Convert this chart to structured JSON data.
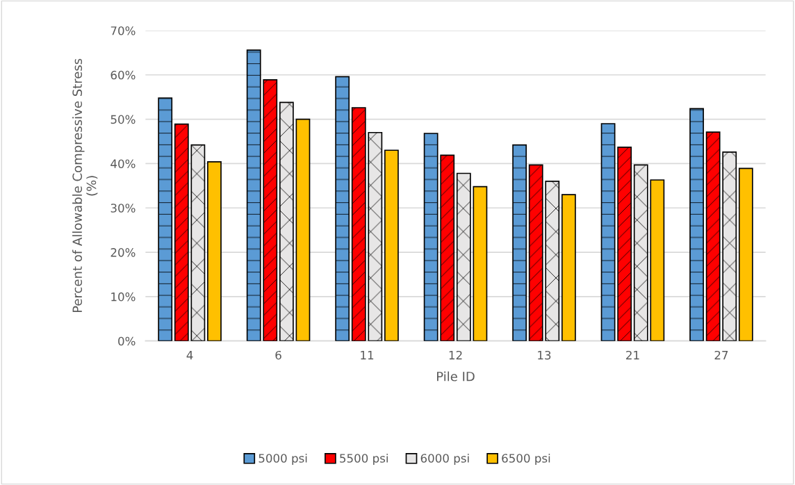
{
  "chart_data": {
    "type": "bar",
    "xlabel": "Pile ID",
    "ylabel": "Percent of Allowable Compressive Stress\n(%)",
    "categories": [
      "4",
      "6",
      "11",
      "12",
      "13",
      "21",
      "27"
    ],
    "series": [
      {
        "name": "5000 psi",
        "color": "#5b9bd5",
        "values": [
          54.8,
          65.6,
          59.6,
          46.8,
          44.2,
          49.0,
          52.4
        ]
      },
      {
        "name": "5500 psi",
        "color": "#ff0000",
        "values": [
          48.9,
          58.9,
          52.6,
          41.9,
          39.7,
          43.7,
          47.1
        ]
      },
      {
        "name": "6000 psi",
        "color": "#e7e6e6",
        "values": [
          44.2,
          53.8,
          47.0,
          37.8,
          36.0,
          39.7,
          42.6
        ]
      },
      {
        "name": "6500 psi",
        "color": "#ffc000",
        "values": [
          40.4,
          50.0,
          43.0,
          34.8,
          33.0,
          36.3,
          38.9
        ]
      }
    ],
    "ylim": [
      0,
      70
    ],
    "yticks": [
      {
        "value": 0,
        "label": "0%"
      },
      {
        "value": 10,
        "label": "10%"
      },
      {
        "value": 20,
        "label": "20%"
      },
      {
        "value": 30,
        "label": "30%"
      },
      {
        "value": 40,
        "label": "40%"
      },
      {
        "value": 50,
        "label": "50%"
      },
      {
        "value": 60,
        "label": "60%"
      },
      {
        "value": 70,
        "label": "70%"
      }
    ],
    "grid": "y",
    "legend": "bottom"
  }
}
